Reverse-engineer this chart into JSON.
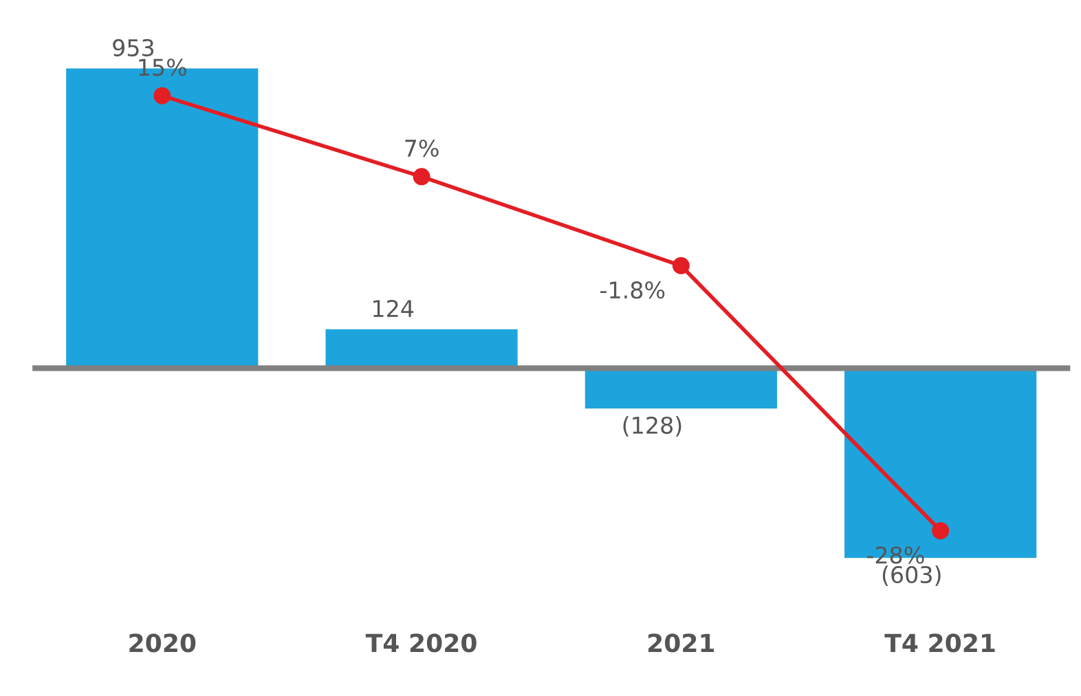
{
  "chart_data": {
    "type": "bar",
    "categories": [
      "2020",
      "T4 2020",
      "2021",
      "T4 2021"
    ],
    "series": [
      {
        "color": "#1ea4dc",
        "values": [
          953,
          124,
          -128,
          -603
        ],
        "value_labels": [
          "953",
          "124",
          "(128)",
          "(603)"
        ]
      },
      {
        "type": "line",
        "axis": "y2",
        "color": "#e31e24",
        "values": [
          15,
          7,
          -1.8,
          -28
        ],
        "value_labels": [
          "15%",
          "7%",
          "-1.8%",
          "-28%"
        ],
        "marker": "circle"
      }
    ],
    "ref_lines": [
      {
        "axis": "y",
        "value": 0,
        "color": "#808080"
      }
    ],
    "tick_labels": "x",
    "grid": false,
    "legend": false
  }
}
